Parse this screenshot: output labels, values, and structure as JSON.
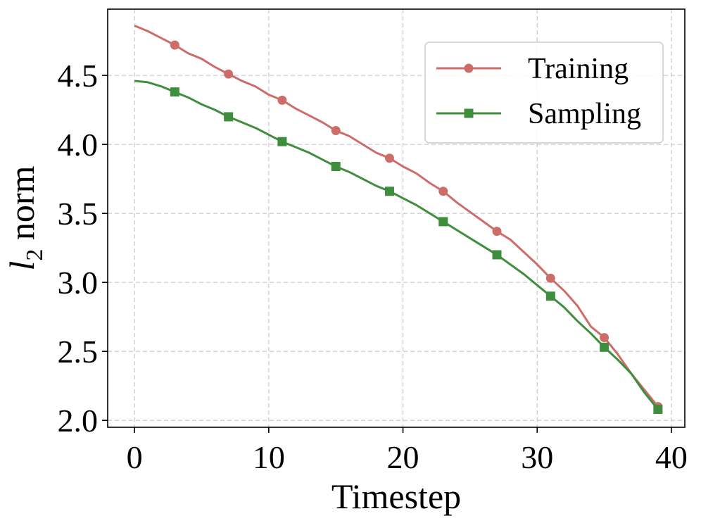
{
  "chart_data": {
    "type": "line",
    "xlabel": "Timestep",
    "ylabel_main": "l",
    "ylabel_sub": "2",
    "ylabel_rest": " norm",
    "xlim": [
      -2,
      41
    ],
    "ylim": [
      1.95,
      4.98
    ],
    "xticks": [
      0,
      10,
      20,
      30,
      40
    ],
    "xtick_labels": [
      "0",
      "10",
      "20",
      "30",
      "40"
    ],
    "yticks": [
      2.0,
      2.5,
      3.0,
      3.5,
      4.0,
      4.5
    ],
    "ytick_labels": [
      "2.0",
      "2.5",
      "3.0",
      "3.5",
      "4.0",
      "4.5"
    ],
    "grid": true,
    "legend_position": "top-right",
    "series": [
      {
        "name": "Training",
        "color": "#cd6d6a",
        "marker": "circle",
        "x": [
          0,
          1,
          2,
          3,
          4,
          5,
          6,
          7,
          8,
          9,
          10,
          11,
          12,
          13,
          14,
          15,
          16,
          17,
          18,
          19,
          20,
          21,
          22,
          23,
          24,
          25,
          26,
          27,
          28,
          29,
          30,
          31,
          32,
          33,
          34,
          35,
          36,
          37,
          38,
          39
        ],
        "y": [
          4.86,
          4.82,
          4.77,
          4.72,
          4.66,
          4.62,
          4.56,
          4.51,
          4.46,
          4.42,
          4.36,
          4.32,
          4.26,
          4.21,
          4.16,
          4.1,
          4.06,
          4.0,
          3.94,
          3.9,
          3.84,
          3.79,
          3.72,
          3.66,
          3.58,
          3.51,
          3.44,
          3.37,
          3.31,
          3.22,
          3.13,
          3.03,
          2.94,
          2.83,
          2.68,
          2.6,
          2.48,
          2.34,
          2.22,
          2.1
        ],
        "marker_x": [
          3,
          7,
          11,
          15,
          19,
          23,
          27,
          31,
          35,
          39
        ]
      },
      {
        "name": "Sampling",
        "color": "#3f8e3e",
        "marker": "square",
        "x": [
          0,
          1,
          2,
          3,
          4,
          5,
          6,
          7,
          8,
          9,
          10,
          11,
          12,
          13,
          14,
          15,
          16,
          17,
          18,
          19,
          20,
          21,
          22,
          23,
          24,
          25,
          26,
          27,
          28,
          29,
          30,
          31,
          32,
          33,
          34,
          35,
          36,
          37,
          38,
          39
        ],
        "y": [
          4.46,
          4.45,
          4.42,
          4.38,
          4.34,
          4.29,
          4.25,
          4.2,
          4.16,
          4.12,
          4.07,
          4.02,
          3.98,
          3.94,
          3.89,
          3.84,
          3.8,
          3.75,
          3.7,
          3.66,
          3.61,
          3.56,
          3.5,
          3.44,
          3.38,
          3.32,
          3.26,
          3.2,
          3.13,
          3.06,
          2.98,
          2.9,
          2.82,
          2.72,
          2.63,
          2.53,
          2.44,
          2.34,
          2.2,
          2.08
        ],
        "marker_x": [
          3,
          7,
          11,
          15,
          19,
          23,
          27,
          31,
          35,
          39
        ]
      }
    ]
  }
}
